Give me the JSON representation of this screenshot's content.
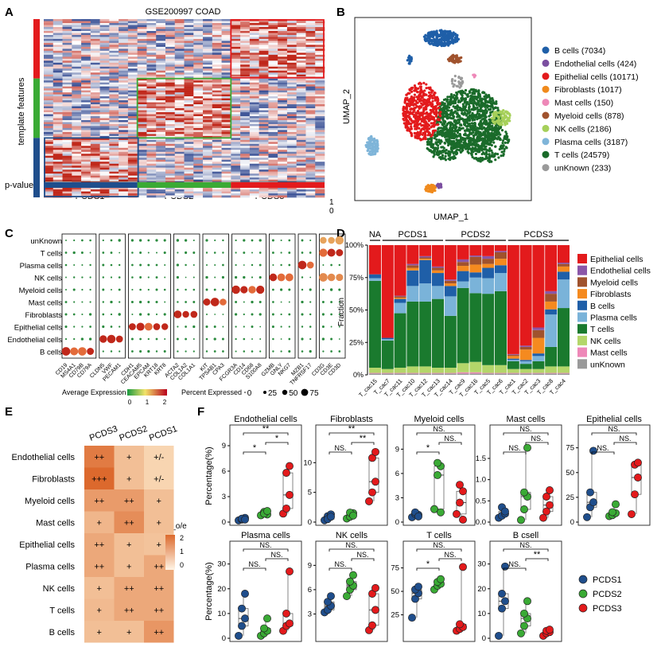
{
  "panel_letters": [
    "A",
    "B",
    "C",
    "D",
    "E",
    "F"
  ],
  "colors": {
    "pcds1": "#1f4e8c",
    "pcds2": "#3aaa35",
    "pcds3": "#e31a1c",
    "heat_red": "#c0281b",
    "heat_blue": "#27408b"
  },
  "panelA": {
    "title": "GSE200997 COAD",
    "ylabel": "template features",
    "pvalue_label": "p-value",
    "scale_top": "1",
    "scale_bottom": "0",
    "groups": [
      "PCDS1",
      "PCDS2",
      "PCDS3"
    ]
  },
  "panelB": {
    "xlabel": "UMAP_1",
    "ylabel": "UMAP_2",
    "legend": [
      {
        "label": "B cells (7034)",
        "color": "#1f5fa8"
      },
      {
        "label": "Endothelial cells (424)",
        "color": "#7b4fa0"
      },
      {
        "label": "Epithelial cells (10171)",
        "color": "#e31a1c"
      },
      {
        "label": "Fibroblasts (1017)",
        "color": "#f08a1c"
      },
      {
        "label": "Mast cells (150)",
        "color": "#ee88b8"
      },
      {
        "label": "Myeloid cells (878)",
        "color": "#a0522d"
      },
      {
        "label": "NK cells (2186)",
        "color": "#a6d05a"
      },
      {
        "label": "Plasma cells (3187)",
        "color": "#7fb5d9"
      },
      {
        "label": "T cells (24579)",
        "color": "#1a6b2a"
      },
      {
        "label": "unKnown (233)",
        "color": "#9a9a9a"
      }
    ]
  },
  "panelC": {
    "rows": [
      "unKnown",
      "T cells",
      "Plasma cells",
      "NK cells",
      "Myeloid cells",
      "Mast cells",
      "Fibroblasts",
      "Epithelial cells",
      "Endothelial cells",
      "B cells"
    ],
    "genes": [
      "CD19",
      "MS4A1",
      "CD79B",
      "CD79A",
      "CLDN5",
      "VWF",
      "PECAM1",
      "CDH1",
      "CEACAM5",
      "EPCAM",
      "KRT18",
      "KRT8",
      "ACTA2",
      "COL1A2",
      "COL1A1",
      "KIT",
      "TPSAB1",
      "CPA3",
      "FCGR3A",
      "CD14",
      "CD68",
      "S100A8",
      "GZMB",
      "GNLY",
      "NKG7",
      "MZB1",
      "TNFRSF17",
      "CD3G",
      "CD3E",
      "CD3D"
    ],
    "legend_avg_title": "Average Expression",
    "legend_avg_ticks": [
      "0",
      "1",
      "2"
    ],
    "legend_pct_title": "Percent Expressed",
    "legend_pct_ticks": [
      "0",
      "25",
      "50",
      "75"
    ]
  },
  "panelD": {
    "ylabel": "Fraction",
    "yticks": [
      "0%",
      "25%",
      "50%",
      "75%",
      "100%"
    ],
    "group_labels": [
      "NA",
      "PCDS1",
      "PCDS2",
      "PCDS3"
    ],
    "samples": [
      "T_cac15",
      "T_cac7",
      "T_cac11",
      "T_cac10",
      "T_cac12",
      "T_cac13",
      "T_cac14",
      "T_cac9",
      "T_cac16",
      "T_cac5",
      "T_cac6",
      "T_cac1",
      "T_cac2",
      "T_cac3",
      "T_cac8",
      "T_cac4"
    ],
    "legend": [
      {
        "label": "Epithelial cells",
        "color": "#e31a1c"
      },
      {
        "label": "Endothelial cells",
        "color": "#8a56a8"
      },
      {
        "label": "Myeloid cells",
        "color": "#a0522d"
      },
      {
        "label": "Fibroblasts",
        "color": "#f58a1f"
      },
      {
        "label": "B cells",
        "color": "#1f5fa8"
      },
      {
        "label": "Plasma cells",
        "color": "#7ab3d9"
      },
      {
        "label": "T cells",
        "color": "#1a7a2e"
      },
      {
        "label": "NK cells",
        "color": "#b4d66a"
      },
      {
        "label": "Mast cells",
        "color": "#ee88b8"
      },
      {
        "label": "unKnown",
        "color": "#9a9a9a"
      }
    ]
  },
  "panelE": {
    "cols": [
      "PCDS3",
      "PCDS2",
      "PCDS1"
    ],
    "rows": [
      {
        "label": "Endothelial cells",
        "cells": [
          "++",
          "+",
          "+/-"
        ]
      },
      {
        "label": "Fibroblasts",
        "cells": [
          "+++",
          "+",
          "+/-"
        ]
      },
      {
        "label": "Myeloid cells",
        "cells": [
          "++",
          "++",
          "+"
        ]
      },
      {
        "label": "Mast cells",
        "cells": [
          "+",
          "++",
          "+"
        ]
      },
      {
        "label": "Epithelial cells",
        "cells": [
          "++",
          "+",
          "+"
        ]
      },
      {
        "label": "Plasma cells",
        "cells": [
          "++",
          "+",
          "++"
        ]
      },
      {
        "label": "NK cells",
        "cells": [
          "+",
          "++",
          "++"
        ]
      },
      {
        "label": "T cells",
        "cells": [
          "+",
          "++",
          "++"
        ]
      },
      {
        "label": "B cells",
        "cells": [
          "+",
          "+",
          "++"
        ]
      }
    ],
    "values": [
      [
        2.6,
        1.1,
        0.6
      ],
      [
        3.0,
        1.1,
        0.6
      ],
      [
        1.9,
        1.9,
        1.1
      ],
      [
        1.3,
        2.2,
        1.1
      ],
      [
        1.6,
        1.1,
        1.0
      ],
      [
        1.6,
        1.1,
        1.6
      ],
      [
        1.1,
        1.6,
        1.6
      ],
      [
        1.2,
        1.6,
        1.6
      ],
      [
        1.1,
        1.1,
        2.0
      ]
    ],
    "legend_title": "R_o/e",
    "legend_ticks": [
      "2",
      "1",
      "0"
    ]
  },
  "panelF": {
    "ylabel": "Percentage(%)",
    "legend": [
      "PCDS1",
      "PCDS2",
      "PCDS3"
    ],
    "plots": [
      {
        "title": "Endothelial cells",
        "yticks": [
          "0",
          "3",
          "6",
          "9"
        ],
        "ymax": 10.5,
        "points": [
          [
            0.2,
            0.3,
            0.5,
            0.4,
            0.3
          ],
          [
            0.8,
            1.2,
            0.9,
            1.0,
            1.3
          ],
          [
            1.0,
            1.6,
            3.2,
            5.8,
            6.6
          ]
        ],
        "sig": [
          {
            "a": 0,
            "b": 2,
            "label": "**"
          },
          {
            "a": 1,
            "b": 2,
            "label": "*"
          },
          {
            "a": 0,
            "b": 1,
            "label": "*"
          }
        ]
      },
      {
        "title": "Fibroblasts",
        "yticks": [
          "0",
          "5",
          "10"
        ],
        "ymax": 15,
        "points": [
          [
            0.3,
            1.0,
            1.3,
            0.5,
            0.9
          ],
          [
            0.6,
            0.9,
            1.5,
            1.6,
            1.1
          ],
          [
            3.5,
            5.0,
            6.8,
            10.8,
            11.8
          ]
        ],
        "sig": [
          {
            "a": 0,
            "b": 2,
            "label": "**"
          },
          {
            "a": 1,
            "b": 2,
            "label": "**"
          },
          {
            "a": 0,
            "b": 1,
            "label": "NS."
          }
        ]
      },
      {
        "title": "Myeloid cells",
        "yticks": [
          "0",
          "3",
          "6",
          "9"
        ],
        "ymax": 11,
        "points": [
          [
            0.6,
            1.0,
            0.9,
            1.2,
            0.7
          ],
          [
            1.6,
            5.8,
            6.9,
            7.3,
            1.2
          ],
          [
            1.0,
            2.4,
            3.8,
            4.6,
            0.3
          ]
        ],
        "sig": [
          {
            "a": 0,
            "b": 2,
            "label": "NS."
          },
          {
            "a": 1,
            "b": 2,
            "label": "NS."
          },
          {
            "a": 0,
            "b": 1,
            "label": "*"
          }
        ]
      },
      {
        "title": "Mast cells",
        "yticks": [
          "0.0",
          "0.5",
          "1.0",
          "1.5"
        ],
        "ymax": 2.1,
        "points": [
          [
            0.1,
            0.15,
            0.2,
            0.35,
            0.25
          ],
          [
            0.05,
            0.3,
            0.6,
            0.7,
            1.75
          ],
          [
            0.1,
            0.25,
            0.4,
            0.6,
            0.75
          ]
        ],
        "sig": [
          {
            "a": 0,
            "b": 2,
            "label": "NS."
          },
          {
            "a": 1,
            "b": 2,
            "label": "NS."
          },
          {
            "a": 0,
            "b": 1,
            "label": "NS."
          }
        ]
      },
      {
        "title": "Epithelial cells",
        "yticks": [
          "0",
          "25",
          "50",
          "75"
        ],
        "ymax": 90,
        "points": [
          [
            5,
            15,
            20,
            30,
            72
          ],
          [
            6,
            7,
            9,
            10,
            18
          ],
          [
            8,
            28,
            45,
            58,
            60
          ]
        ],
        "sig": [
          {
            "a": 0,
            "b": 2,
            "label": "NS."
          },
          {
            "a": 1,
            "b": 2,
            "label": "NS."
          },
          {
            "a": 0,
            "b": 1,
            "label": "NS."
          }
        ]
      },
      {
        "title": "Plasma cells",
        "yticks": [
          "0",
          "10",
          "20",
          "30"
        ],
        "ymax": 36,
        "points": [
          [
            1,
            5,
            8,
            12,
            18
          ],
          [
            1,
            2,
            3,
            4,
            8
          ],
          [
            3,
            5,
            6,
            10,
            27
          ]
        ],
        "sig": [
          {
            "a": 0,
            "b": 2,
            "label": "NS."
          },
          {
            "a": 1,
            "b": 2,
            "label": "NS."
          },
          {
            "a": 0,
            "b": 1,
            "label": "NS."
          }
        ]
      },
      {
        "title": "NK cells",
        "yticks": [
          "3",
          "6",
          "9"
        ],
        "ymax": 11,
        "points": [
          [
            3.2,
            3.5,
            4.0,
            4.5,
            5.2
          ],
          [
            5.2,
            6.0,
            6.5,
            7.0,
            7.8
          ],
          [
            1.0,
            1.6,
            3.5,
            5.5,
            6.2
          ]
        ],
        "sig": [
          {
            "a": 0,
            "b": 2,
            "label": "NS."
          },
          {
            "a": 1,
            "b": 2,
            "label": "NS."
          },
          {
            "a": 0,
            "b": 1,
            "label": "NS."
          }
        ]
      },
      {
        "title": "T cells",
        "yticks": [
          "25",
          "50",
          "75"
        ],
        "ymax": 95,
        "points": [
          [
            22,
            42,
            48,
            52,
            55
          ],
          [
            52,
            56,
            58,
            60,
            63
          ],
          [
            8,
            10,
            12,
            15,
            76
          ]
        ],
        "sig": [
          {
            "a": 0,
            "b": 2,
            "label": "NS."
          },
          {
            "a": 1,
            "b": 2,
            "label": "NS."
          },
          {
            "a": 0,
            "b": 1,
            "label": "*"
          }
        ]
      },
      {
        "title": "B csell",
        "yticks": [
          "0",
          "10",
          "20",
          "30"
        ],
        "ymax": 36,
        "points": [
          [
            1,
            12,
            15,
            18,
            29
          ],
          [
            2,
            5,
            8,
            10,
            15
          ],
          [
            1,
            2,
            2.5,
            3,
            3.5
          ]
        ],
        "sig": [
          {
            "a": 0,
            "b": 2,
            "label": "NS."
          },
          {
            "a": 1,
            "b": 2,
            "label": "**"
          },
          {
            "a": 0,
            "b": 1,
            "label": "NS."
          }
        ]
      }
    ]
  },
  "chart_data": [
    {
      "type": "heatmap",
      "title": "GSE200997 COAD",
      "xlabel": "",
      "ylabel": "template features",
      "categories": [
        "PCDS1",
        "PCDS2",
        "PCDS3"
      ]
    },
    {
      "type": "scatter",
      "xlabel": "UMAP_1",
      "ylabel": "UMAP_2",
      "series": [
        {
          "name": "B cells (7034)"
        },
        {
          "name": "Endothelial cells (424)"
        },
        {
          "name": "Epithelial cells (10171)"
        },
        {
          "name": "Fibroblasts (1017)"
        },
        {
          "name": "Mast cells (150)"
        },
        {
          "name": "Myeloid cells (878)"
        },
        {
          "name": "NK cells (2186)"
        },
        {
          "name": "Plasma cells (3187)"
        },
        {
          "name": "T cells (24579)"
        },
        {
          "name": "unKnown (233)"
        }
      ]
    },
    {
      "type": "scatter",
      "title": "",
      "xlabel": "",
      "ylabel": ""
    },
    {
      "type": "bar",
      "ylabel": "Fraction",
      "stacked": true,
      "categories": [
        "T_cac15",
        "T_cac7",
        "T_cac11",
        "T_cac10",
        "T_cac12",
        "T_cac13",
        "T_cac14",
        "T_cac9",
        "T_cac16",
        "T_cac5",
        "T_cac6",
        "T_cac1",
        "T_cac2",
        "T_cac3",
        "T_cac8",
        "T_cac4"
      ],
      "series": [
        {
          "name": "unKnown",
          "values": [
            1,
            1,
            1,
            1,
            1,
            1,
            1,
            1,
            1,
            1,
            1,
            1,
            1,
            1,
            1,
            1
          ]
        },
        {
          "name": "Mast cells",
          "values": [
            0.5,
            0.5,
            0.5,
            0.5,
            0.5,
            0.5,
            0.5,
            1,
            1,
            0.5,
            0.5,
            0.5,
            0.5,
            0.5,
            0.5,
            0.5
          ]
        },
        {
          "name": "NK cells",
          "values": [
            4,
            3,
            4,
            5,
            5,
            4,
            4,
            7,
            8,
            6,
            6,
            3,
            3,
            3,
            5,
            5
          ]
        },
        {
          "name": "T cells",
          "values": [
            67,
            22,
            42,
            50,
            50,
            53,
            40,
            58,
            53,
            55,
            57,
            6,
            4,
            6,
            15,
            45
          ]
        },
        {
          "name": "Plasma cells",
          "values": [
            2,
            1,
            8,
            12,
            14,
            10,
            15,
            5,
            12,
            12,
            14,
            1,
            2,
            4,
            25,
            22
          ]
        },
        {
          "name": "B cells",
          "values": [
            3,
            1,
            3,
            12,
            18,
            10,
            8,
            8,
            4,
            8,
            6,
            1,
            1,
            2,
            4,
            6
          ]
        },
        {
          "name": "Fibroblasts",
          "values": [
            0,
            0,
            1,
            2,
            1,
            2,
            2,
            4,
            6,
            3,
            5,
            2,
            8,
            12,
            6,
            4
          ]
        },
        {
          "name": "Myeloid cells",
          "values": [
            0,
            0,
            1,
            2,
            1,
            2,
            2,
            3,
            6,
            4,
            5,
            1,
            2,
            6,
            6,
            2
          ]
        },
        {
          "name": "Endothelial cells",
          "values": [
            0,
            0,
            0.5,
            1,
            1,
            1,
            1,
            2,
            1,
            2,
            1,
            0.5,
            1,
            2,
            2,
            1
          ]
        },
        {
          "name": "Epithelial cells",
          "values": [
            22.5,
            71.5,
            39,
            14.5,
            8.5,
            16.5,
            26.5,
            11,
            8,
            8.5,
            4.5,
            84,
            77.5,
            63.5,
            35.5,
            13.5
          ]
        }
      ],
      "ylim": [
        0,
        100
      ]
    },
    {
      "type": "heatmap",
      "title": "",
      "legend_title": "R_o/e"
    },
    {
      "type": "scatter",
      "ylabel": "Percentage(%)",
      "series": [
        {
          "name": "PCDS1"
        },
        {
          "name": "PCDS2"
        },
        {
          "name": "PCDS3"
        }
      ]
    }
  ]
}
